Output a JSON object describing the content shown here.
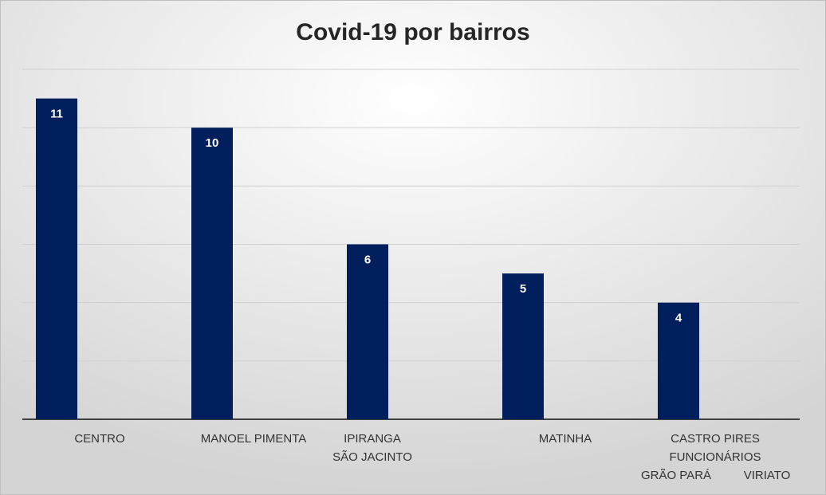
{
  "chart_data": {
    "type": "bar",
    "title": "Covid-19 por bairros",
    "categories": [
      [
        "CENTRO"
      ],
      [
        "MANOEL PIMENTA"
      ],
      [
        "IPIRANGA",
        "SÃO JACINTO"
      ],
      [
        "MATINHA"
      ],
      [
        "CASTRO PIRES",
        "FUNCIONÁRIOS",
        "GRÃO PARÁ",
        "VIRIATO"
      ]
    ],
    "values": [
      11,
      10,
      6,
      5,
      4
    ],
    "color": "#001f5c",
    "ylim": [
      0,
      12
    ],
    "yticks": [
      0,
      2,
      4,
      6,
      8,
      10,
      12
    ],
    "grid": true,
    "tick_labels": false
  }
}
